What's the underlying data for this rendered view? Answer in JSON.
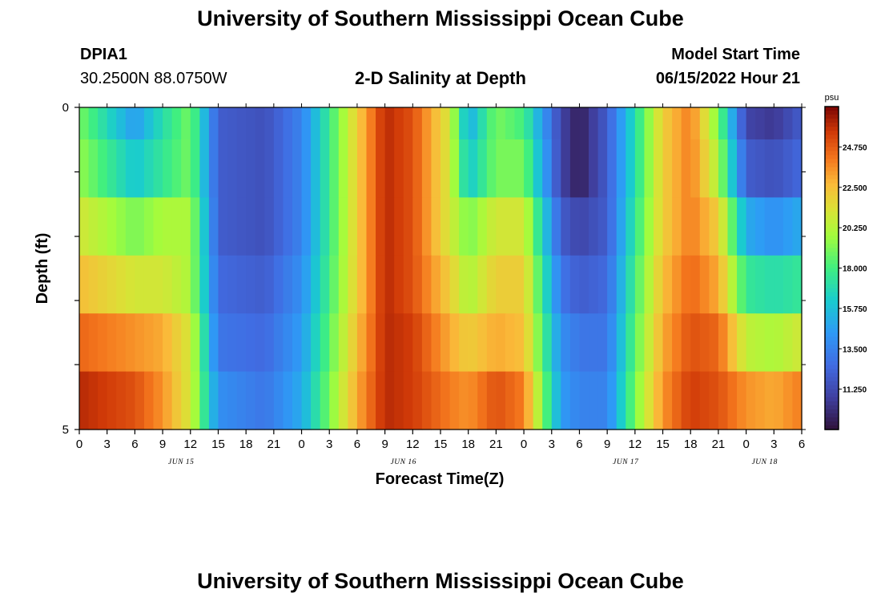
{
  "header": {
    "title": "University of Southern Mississippi Ocean Cube",
    "station": "DPIA1",
    "coords": "30.2500N  88.0750W",
    "chart_title": "2-D Salinity at Depth",
    "model_start_label": "Model Start Time",
    "model_start_value": "06/15/2022 Hour 21"
  },
  "footer": {
    "title": "University of Southern Mississippi Ocean Cube"
  },
  "chart_data": {
    "type": "heatmap",
    "title": "2-D Salinity at Depth",
    "xlabel": "Forecast Time(Z)",
    "ylabel": "Depth (ft)",
    "x_tick_labels": [
      "0",
      "3",
      "6",
      "9",
      "12",
      "15",
      "18",
      "21",
      "0",
      "3",
      "6",
      "9",
      "12",
      "15",
      "18",
      "21",
      "0",
      "3",
      "6",
      "9",
      "12",
      "15",
      "18",
      "21",
      "0",
      "3",
      "6"
    ],
    "date_labels": [
      {
        "label": "JUN 15",
        "hour": 11
      },
      {
        "label": "JUN 16",
        "hour": 35
      },
      {
        "label": "JUN 17",
        "hour": 59
      },
      {
        "label": "JUN 18",
        "hour": 74
      }
    ],
    "xlim_hours": [
      0,
      78
    ],
    "ylim": [
      0,
      5
    ],
    "y_tick_labels": [
      "0",
      "5"
    ],
    "colorbar": {
      "unit": "psu",
      "min": 9.0,
      "max": 27.0,
      "tick_labels": [
        "24.750",
        "22.500",
        "20.250",
        "18.000",
        "15.750",
        "13.500",
        "11.250"
      ],
      "tick_values": [
        24.75,
        22.5,
        20.25,
        18.0,
        15.75,
        13.5,
        11.25
      ]
    },
    "series": [
      {
        "row": 1,
        "hours": [
          0,
          6,
          9,
          12,
          15,
          20,
          24,
          30,
          33,
          36,
          40,
          42,
          45,
          48,
          52,
          54,
          57,
          60,
          63,
          66,
          69,
          72,
          75,
          78
        ],
        "values": [
          19,
          14.5,
          17,
          19,
          12,
          11.5,
          13.5,
          22,
          26,
          25,
          21,
          15,
          19,
          18,
          11,
          9.5,
          12,
          17,
          22,
          24,
          19,
          11,
          10.5,
          12
        ]
      },
      {
        "row": 2,
        "hours": [
          0,
          6,
          9,
          12,
          15,
          20,
          24,
          30,
          33,
          36,
          40,
          42,
          45,
          48,
          52,
          54,
          57,
          60,
          63,
          66,
          69,
          72,
          75,
          78
        ],
        "values": [
          19.5,
          16,
          17.5,
          19,
          12,
          11.5,
          13.5,
          22,
          26,
          25,
          21,
          16,
          19,
          19,
          11,
          9.5,
          12,
          17,
          22,
          24,
          20,
          12,
          11.5,
          12.5
        ]
      },
      {
        "row": 3,
        "hours": [
          0,
          6,
          9,
          12,
          15,
          20,
          24,
          30,
          33,
          36,
          40,
          42,
          45,
          48,
          52,
          54,
          57,
          60,
          63,
          66,
          69,
          72,
          75,
          78
        ],
        "values": [
          21,
          19,
          20,
          20,
          12,
          11.5,
          13.5,
          22,
          26,
          25,
          21,
          19,
          21,
          21,
          12,
          11,
          12,
          17.5,
          22,
          24,
          22,
          15,
          14,
          15
        ]
      },
      {
        "row": 4,
        "hours": [
          0,
          6,
          9,
          12,
          15,
          20,
          24,
          30,
          33,
          36,
          40,
          42,
          45,
          48,
          52,
          54,
          57,
          60,
          63,
          66,
          69,
          72,
          75,
          78
        ],
        "values": [
          22.5,
          21,
          21,
          20,
          12.5,
          12,
          14,
          22,
          26,
          25,
          22,
          20,
          22,
          22,
          13,
          12,
          12.5,
          18,
          22.5,
          24.5,
          23,
          17.5,
          17,
          17.5
        ]
      },
      {
        "row": 5,
        "hours": [
          0,
          6,
          9,
          12,
          15,
          20,
          24,
          30,
          33,
          36,
          40,
          42,
          45,
          48,
          52,
          54,
          57,
          60,
          63,
          66,
          69,
          72,
          75,
          78
        ],
        "values": [
          24.5,
          23.5,
          23,
          21,
          13,
          12.5,
          14.5,
          22.5,
          26,
          25.5,
          23,
          22,
          23,
          22.5,
          14,
          13,
          13,
          18.5,
          23,
          25,
          24.5,
          20.5,
          20,
          21
        ]
      },
      {
        "row": 6,
        "hours": [
          0,
          6,
          9,
          12,
          15,
          20,
          24,
          30,
          33,
          36,
          40,
          42,
          45,
          48,
          52,
          54,
          57,
          60,
          63,
          66,
          69,
          72,
          75,
          78
        ],
        "values": [
          26,
          25,
          23.5,
          21,
          14,
          13,
          15,
          23,
          26,
          25.5,
          24,
          23.5,
          25,
          24,
          14.5,
          13.5,
          13.5,
          19,
          23.5,
          25.5,
          25,
          23.5,
          23,
          24
        ]
      }
    ]
  }
}
